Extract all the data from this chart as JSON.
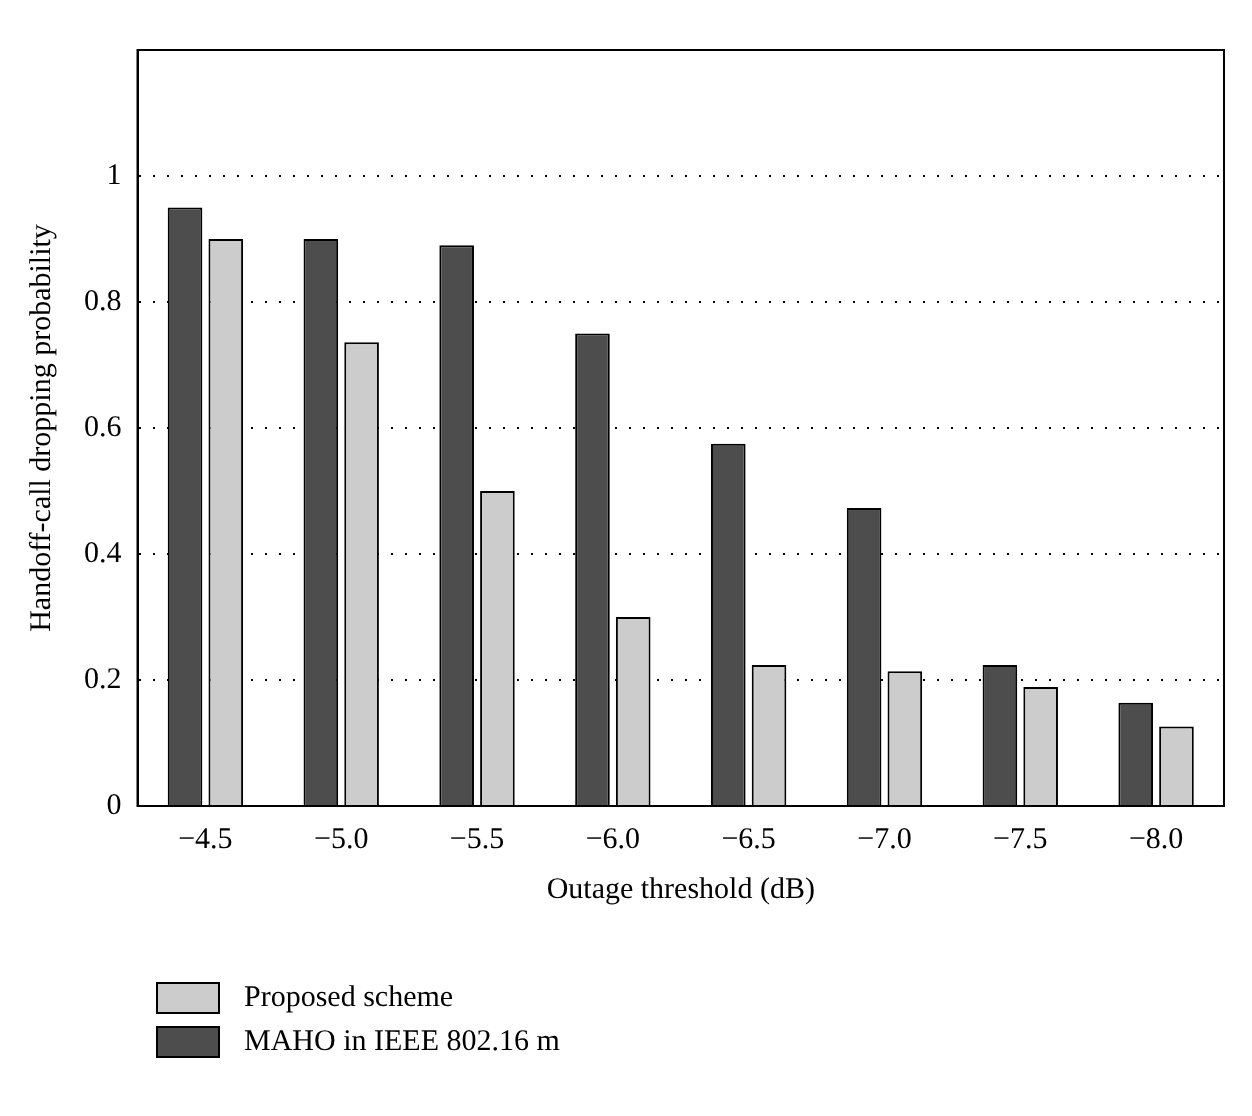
{
  "chart_data": {
    "type": "bar",
    "xlabel": "Outage threshold (dB)",
    "ylabel": "Handoff-call dropping probability",
    "categories": [
      "−4.5",
      "−5.0",
      "−5.5",
      "−6.0",
      "−6.5",
      "−7.0",
      "−7.5",
      "−8.0"
    ],
    "series": [
      {
        "name": "MAHO in IEEE 802.16 m",
        "color": "#4d4d4d",
        "values": [
          0.95,
          0.9,
          0.89,
          0.75,
          0.575,
          0.473,
          0.224,
          0.164
        ]
      },
      {
        "name": "Proposed scheme",
        "color": "#cccccc",
        "values": [
          0.9,
          0.736,
          0.5,
          0.3,
          0.224,
          0.214,
          0.189,
          0.126
        ]
      }
    ],
    "ylim": [
      0,
      1.2
    ],
    "yticks": [
      0,
      0.2,
      0.4,
      0.6,
      0.8,
      1
    ],
    "grid": "y",
    "legend": "bottom"
  }
}
